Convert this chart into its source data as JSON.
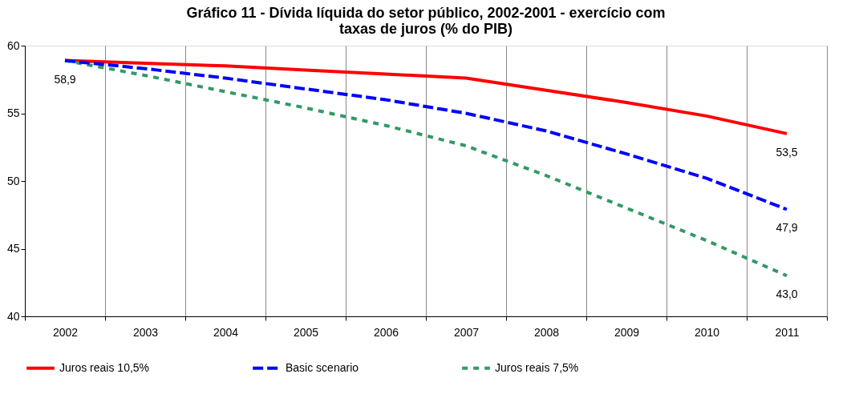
{
  "chart_data": {
    "type": "line",
    "title": "Gráfico 11 - Dívida líquida do setor público, 2002-2001 - exercício com taxas de juros  (% do PIB)",
    "categories": [
      "2002",
      "2003",
      "2004",
      "2005",
      "2006",
      "2007",
      "2008",
      "2009",
      "2010",
      "2011"
    ],
    "series": [
      {
        "name": "Juros reais 10,5%",
        "color": "#ff0000",
        "line_style": "solid",
        "values": [
          58.9,
          58.7,
          58.5,
          58.2,
          57.9,
          57.6,
          56.7,
          55.8,
          54.8,
          53.5
        ],
        "value_labels": [
          "58,9",
          null,
          null,
          null,
          null,
          null,
          null,
          null,
          null,
          "53,5"
        ]
      },
      {
        "name": "Basic scenario",
        "color": "#0000ff",
        "line_style": "dashed",
        "values": [
          58.9,
          58.3,
          57.6,
          56.8,
          56.0,
          55.0,
          53.7,
          52.0,
          50.2,
          47.9
        ],
        "value_labels": [
          null,
          null,
          null,
          null,
          null,
          null,
          null,
          null,
          null,
          "47,9"
        ]
      },
      {
        "name": "Juros reais 7,5%",
        "color": "#339966",
        "line_style": "dotted",
        "values": [
          58.9,
          57.8,
          56.6,
          55.4,
          54.1,
          52.6,
          50.4,
          48.0,
          45.6,
          43.0
        ],
        "value_labels": [
          null,
          null,
          null,
          null,
          null,
          null,
          null,
          null,
          null,
          "43,0"
        ]
      }
    ],
    "ylim": [
      40,
      60
    ],
    "yticks": [
      40,
      45,
      50,
      55,
      60
    ],
    "grid": "x",
    "legend": "bottom"
  }
}
